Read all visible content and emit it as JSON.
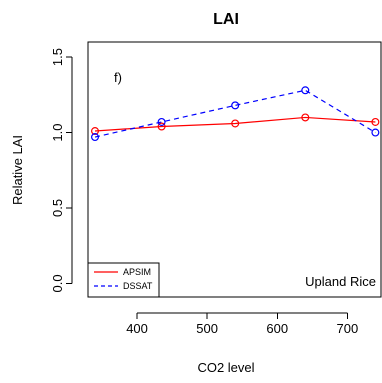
{
  "chart_data": {
    "type": "line",
    "title": "LAI",
    "xlabel": "CO2 level",
    "ylabel": "Relative LAI",
    "panel_label": "f)",
    "annotation": "Upland Rice",
    "xlim": [
      330,
      748
    ],
    "ylim": [
      -0.09,
      1.6
    ],
    "x_ticks": [
      400,
      500,
      600,
      700
    ],
    "y_ticks": [
      0.0,
      0.5,
      1.0,
      1.5
    ],
    "x_tick_labels": [
      "400",
      "500",
      "600",
      "700"
    ],
    "y_tick_labels": [
      "0.0",
      "0.5",
      "1.0",
      "1.5"
    ],
    "x": [
      340,
      435,
      540,
      640,
      740
    ],
    "series": [
      {
        "name": "APSIM",
        "color": "#ff0000",
        "linestyle": "solid",
        "marker": "open-circle",
        "values": [
          1.01,
          1.04,
          1.06,
          1.1,
          1.07
        ]
      },
      {
        "name": "DSSAT",
        "color": "#0000ff",
        "linestyle": "dashed",
        "marker": "open-circle",
        "values": [
          0.97,
          1.07,
          1.18,
          1.28,
          1.0
        ]
      }
    ],
    "legend": {
      "placement": "bottom-left",
      "entries": [
        "APSIM",
        "DSSAT"
      ]
    },
    "grid": false
  }
}
